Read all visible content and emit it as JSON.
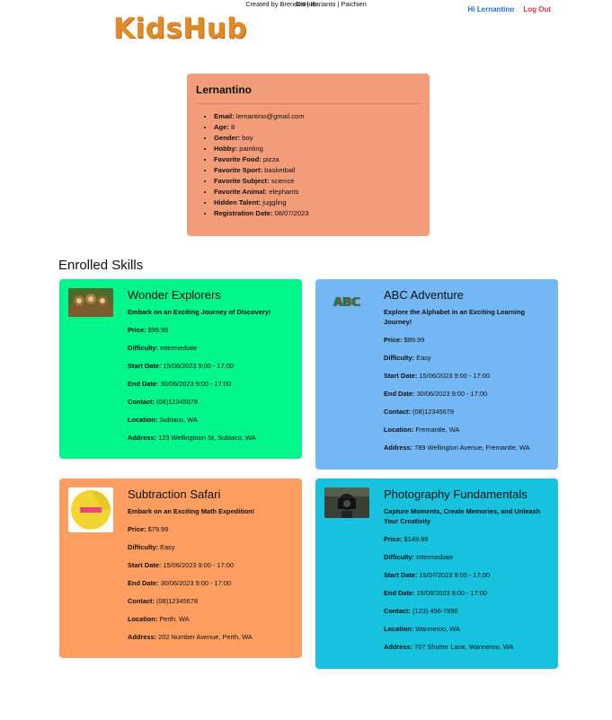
{
  "header": {
    "logo": "KidsHub",
    "greeting": "Hi Lernantino",
    "logout": "Log Out"
  },
  "profile": {
    "name": "Lernantino",
    "fields": [
      {
        "label": "Email:",
        "value": "lernantino@gmail.com"
      },
      {
        "label": "Age:",
        "value": "8"
      },
      {
        "label": "Gender:",
        "value": "boy"
      },
      {
        "label": "Hobby:",
        "value": "painting"
      },
      {
        "label": "Favorite Food:",
        "value": "pizza"
      },
      {
        "label": "Favorite Sport:",
        "value": "basketball"
      },
      {
        "label": "Favorite Subject:",
        "value": "science"
      },
      {
        "label": "Favorite Animal:",
        "value": "elephants"
      },
      {
        "label": "Hidden Talent:",
        "value": "juggling"
      },
      {
        "label": "Registration Date:",
        "value": "08/07/2023"
      }
    ]
  },
  "skills_title": "Enrolled Skills",
  "skills": [
    {
      "title": "Wonder Explorers",
      "tagline": "Embark on an Exciting Journey of Discovery!",
      "color": "#00f58a",
      "price_label": "Price:",
      "price": "$99.99",
      "difficulty_label": "Difficulty:",
      "difficulty": "Intermediate",
      "start_label": "Start Date:",
      "start": "15/06/2023 9:00 - 17:00",
      "end_label": "End Date:",
      "end": "30/06/2023 9:00 - 17:00",
      "contact_label": "Contact:",
      "contact": "(08)12345678",
      "location_label": "Location:",
      "location": "Subiaco, WA",
      "address_label": "Address:",
      "address": "123 Wellingtoon St, Subiaco, WA",
      "icon": "monkeys-photo-icon"
    },
    {
      "title": "ABC Adventure",
      "tagline": "Explore the Alphabet in an Exciting Learning Journey!",
      "color": "#74b7f5",
      "price_label": "Price:",
      "price": "$89.99",
      "difficulty_label": "Difficulty:",
      "difficulty": "Easy",
      "start_label": "Start Date:",
      "start": "15/06/2023 9:00 - 17:00",
      "end_label": "End Date:",
      "end": "30/06/2023 9:00 - 17:00",
      "contact_label": "Contact:",
      "contact": "(08)12345678",
      "location_label": "Location:",
      "location": "Fremantle, WA",
      "address_label": "Address:",
      "address": "789 Wellington Avenue, Fremantle, WA",
      "icon": "abc-letters-icon",
      "icon_text": "ABC"
    },
    {
      "title": "Subtraction Safari",
      "tagline": "Embark on an Exciting Math Expedition!",
      "color": "#ff9e60",
      "price_label": "Price:",
      "price": "$79.99",
      "difficulty_label": "Difficulty:",
      "difficulty": "Easy",
      "start_label": "Start Date:",
      "start": "15/06/2023 9:00 - 17:00",
      "end_label": "End Date:",
      "end": "30/06/2023 9:00 - 17:00",
      "contact_label": "Contact:",
      "contact": "(08)12345678",
      "location_label": "Location:",
      "location": "Perth, WA",
      "address_label": "Address:",
      "address": "202 Number Avenue, Perth, WA",
      "icon": "minus-sticker-icon"
    },
    {
      "title": "Photography Fundamentals",
      "tagline": "Capture Moments, Create Memories, and Unleash Your Creativity",
      "color": "#16c2de",
      "price_label": "Price:",
      "price": "$149.99",
      "difficulty_label": "Difficulty:",
      "difficulty": "Intermediate",
      "start_label": "Start Date:",
      "start": "15/07/2023 9:00 - 17:00",
      "end_label": "End Date:",
      "end": "15/08/2023 9:00 - 17:00",
      "contact_label": "Contact:",
      "contact": "(123) 456-7890",
      "location_label": "Location:",
      "location": "Wanneroo, WA",
      "address_label": "Address:",
      "address": "707 Shutter Lane, Wanneroo, WA",
      "icon": "camera-photographer-icon"
    }
  ],
  "footer": {
    "github": "GitHub",
    "credit": "Created by Brenden | Harianto | Paichien"
  }
}
